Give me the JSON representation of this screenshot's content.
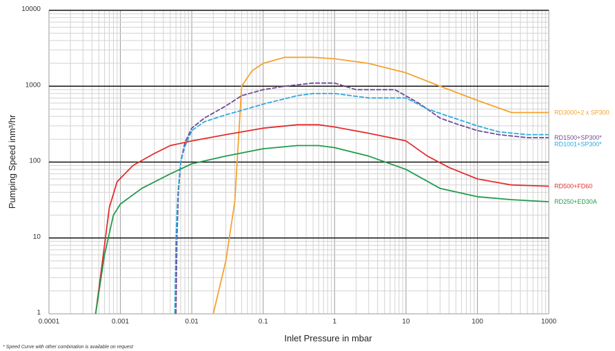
{
  "chart_data": {
    "type": "line",
    "title": "",
    "xlabel": "Inlet Pressure in mbar",
    "ylabel": "Pumping Speed inm³/hr",
    "xscale": "log",
    "yscale": "log",
    "xlim": [
      0.0001,
      1000
    ],
    "ylim": [
      1,
      10000
    ],
    "x_tick_labels": [
      "0.0001",
      "0.001",
      "0.01",
      "0.1",
      "1",
      "10",
      "100",
      "1000"
    ],
    "y_tick_labels": [
      "1",
      "10",
      "100",
      "1000",
      "10000"
    ],
    "grid": true,
    "legend": "labels at right end of each line",
    "footnote": "* Speed Curve with other combination is available on request",
    "series": [
      {
        "name": "RD3000+2 x SP300",
        "color": "#f5a22c",
        "dashed": false,
        "points": [
          [
            0.02,
            1
          ],
          [
            0.03,
            5
          ],
          [
            0.04,
            30
          ],
          [
            0.05,
            1000
          ],
          [
            0.07,
            1600
          ],
          [
            0.1,
            2000
          ],
          [
            0.2,
            2400
          ],
          [
            0.5,
            2400
          ],
          [
            1,
            2300
          ],
          [
            3,
            2000
          ],
          [
            10,
            1500
          ],
          [
            30,
            1000
          ],
          [
            100,
            650
          ],
          [
            300,
            450
          ],
          [
            1000,
            450
          ]
        ]
      },
      {
        "name": "RD1500+SP300*",
        "color": "#6f4a93",
        "dashed": true,
        "points": [
          [
            0.006,
            1
          ],
          [
            0.0062,
            10
          ],
          [
            0.0065,
            40
          ],
          [
            0.007,
            100
          ],
          [
            0.008,
            180
          ],
          [
            0.01,
            280
          ],
          [
            0.015,
            380
          ],
          [
            0.03,
            550
          ],
          [
            0.05,
            750
          ],
          [
            0.1,
            900
          ],
          [
            0.2,
            1000
          ],
          [
            0.5,
            1100
          ],
          [
            1,
            1100
          ],
          [
            2,
            900
          ],
          [
            7,
            900
          ],
          [
            15,
            600
          ],
          [
            30,
            380
          ],
          [
            50,
            320
          ],
          [
            100,
            260
          ],
          [
            200,
            230
          ],
          [
            500,
            210
          ],
          [
            1000,
            210
          ]
        ]
      },
      {
        "name": "RD1001+SP300*",
        "color": "#2ca7e0",
        "dashed": true,
        "points": [
          [
            0.0058,
            1
          ],
          [
            0.006,
            10
          ],
          [
            0.0064,
            40
          ],
          [
            0.007,
            100
          ],
          [
            0.008,
            160
          ],
          [
            0.01,
            260
          ],
          [
            0.015,
            340
          ],
          [
            0.03,
            420
          ],
          [
            0.05,
            480
          ],
          [
            0.1,
            580
          ],
          [
            0.3,
            750
          ],
          [
            0.5,
            800
          ],
          [
            1,
            800
          ],
          [
            3,
            700
          ],
          [
            10,
            700
          ],
          [
            20,
            500
          ],
          [
            40,
            400
          ],
          [
            100,
            300
          ],
          [
            200,
            250
          ],
          [
            500,
            230
          ],
          [
            1000,
            230
          ]
        ]
      },
      {
        "name": "RD500+FD60",
        "color": "#e32b2b",
        "dashed": false,
        "points": [
          [
            0.00045,
            1
          ],
          [
            0.0006,
            8
          ],
          [
            0.0007,
            25
          ],
          [
            0.0009,
            55
          ],
          [
            0.0015,
            90
          ],
          [
            0.003,
            130
          ],
          [
            0.005,
            165
          ],
          [
            0.01,
            190
          ],
          [
            0.03,
            230
          ],
          [
            0.1,
            280
          ],
          [
            0.3,
            310
          ],
          [
            0.6,
            310
          ],
          [
            1,
            290
          ],
          [
            3,
            240
          ],
          [
            10,
            190
          ],
          [
            20,
            120
          ],
          [
            40,
            85
          ],
          [
            100,
            60
          ],
          [
            300,
            50
          ],
          [
            1000,
            48
          ]
        ]
      },
      {
        "name": "RD250+ED30A",
        "color": "#1f9a4c",
        "dashed": false,
        "points": [
          [
            0.00045,
            1
          ],
          [
            0.0006,
            6
          ],
          [
            0.0008,
            20
          ],
          [
            0.001,
            28
          ],
          [
            0.002,
            45
          ],
          [
            0.005,
            70
          ],
          [
            0.01,
            95
          ],
          [
            0.03,
            120
          ],
          [
            0.1,
            150
          ],
          [
            0.3,
            165
          ],
          [
            0.6,
            165
          ],
          [
            1,
            155
          ],
          [
            3,
            120
          ],
          [
            10,
            80
          ],
          [
            30,
            45
          ],
          [
            100,
            35
          ],
          [
            300,
            32
          ],
          [
            1000,
            30
          ]
        ]
      }
    ]
  }
}
